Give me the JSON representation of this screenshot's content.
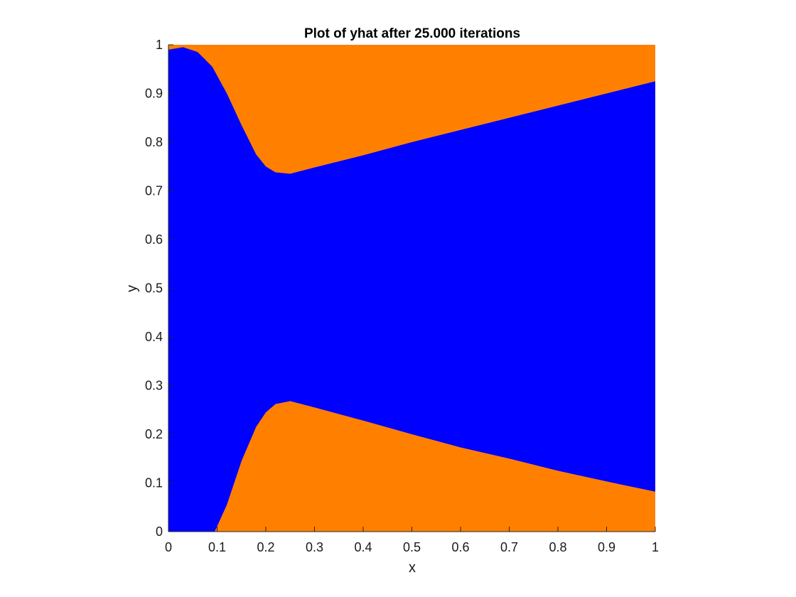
{
  "chart_data": {
    "type": "area",
    "title": "Plot of yhat after 25.000 iterations",
    "xlabel": "x",
    "ylabel": "y",
    "xlim": [
      0,
      1
    ],
    "ylim": [
      0,
      1
    ],
    "xticks": [
      "0",
      "0.1",
      "0.2",
      "0.3",
      "0.4",
      "0.5",
      "0.6",
      "0.7",
      "0.8",
      "0.9",
      "1"
    ],
    "yticks": [
      "0",
      "0.1",
      "0.2",
      "0.3",
      "0.4",
      "0.5",
      "0.6",
      "0.7",
      "0.8",
      "0.9",
      "1"
    ],
    "grid": false,
    "colors": {
      "class_inner": "#0000ff",
      "class_outer": "#ff8000",
      "axis": "#262626"
    },
    "regions": [
      {
        "class": "outer",
        "label": "upper",
        "boundary": [
          {
            "x": 0.0,
            "y": 0.99
          },
          {
            "x": 0.03,
            "y": 0.995
          },
          {
            "x": 0.06,
            "y": 0.985
          },
          {
            "x": 0.09,
            "y": 0.955
          },
          {
            "x": 0.12,
            "y": 0.9
          },
          {
            "x": 0.15,
            "y": 0.835
          },
          {
            "x": 0.18,
            "y": 0.775
          },
          {
            "x": 0.2,
            "y": 0.75
          },
          {
            "x": 0.22,
            "y": 0.738
          },
          {
            "x": 0.25,
            "y": 0.735
          },
          {
            "x": 0.3,
            "y": 0.748
          },
          {
            "x": 0.4,
            "y": 0.773
          },
          {
            "x": 0.5,
            "y": 0.8
          },
          {
            "x": 0.6,
            "y": 0.825
          },
          {
            "x": 0.7,
            "y": 0.85
          },
          {
            "x": 0.8,
            "y": 0.875
          },
          {
            "x": 0.9,
            "y": 0.9
          },
          {
            "x": 1.0,
            "y": 0.925
          }
        ]
      },
      {
        "class": "outer",
        "label": "lower",
        "boundary": [
          {
            "x": 0.095,
            "y": 0.0
          },
          {
            "x": 0.12,
            "y": 0.055
          },
          {
            "x": 0.15,
            "y": 0.145
          },
          {
            "x": 0.18,
            "y": 0.215
          },
          {
            "x": 0.2,
            "y": 0.245
          },
          {
            "x": 0.22,
            "y": 0.262
          },
          {
            "x": 0.25,
            "y": 0.268
          },
          {
            "x": 0.3,
            "y": 0.255
          },
          {
            "x": 0.4,
            "y": 0.228
          },
          {
            "x": 0.5,
            "y": 0.2
          },
          {
            "x": 0.6,
            "y": 0.173
          },
          {
            "x": 0.7,
            "y": 0.15
          },
          {
            "x": 0.8,
            "y": 0.125
          },
          {
            "x": 0.9,
            "y": 0.103
          },
          {
            "x": 1.0,
            "y": 0.082
          }
        ]
      }
    ]
  }
}
